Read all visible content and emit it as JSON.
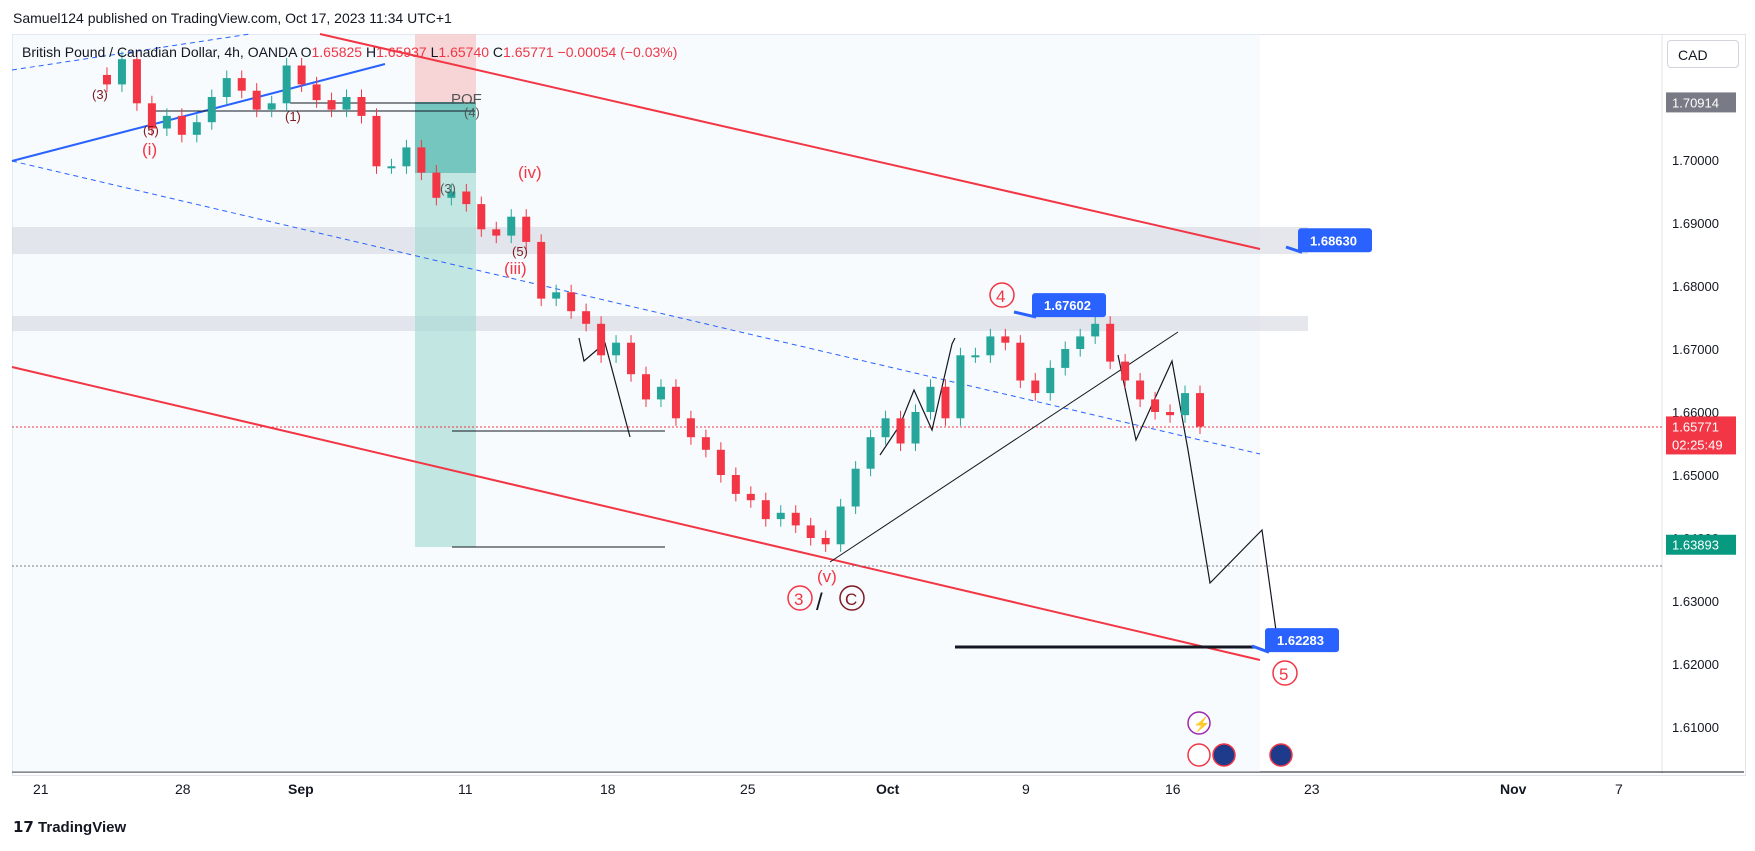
{
  "header": {
    "published_line": "Samuel124 published on TradingView.com, Oct 17, 2023 11:34 UTC+1"
  },
  "legend": {
    "symbol": "British Pound / Canadian Dollar, 4h, OANDA",
    "o_label": "O",
    "o_value": "1.65825",
    "h_label": "H",
    "h_value": "1.65937",
    "l_label": "L",
    "l_value": "1.65740",
    "c_label": "C",
    "c_value": "1.65771",
    "change": "−0.00054 (−0.03%)"
  },
  "currency": "CAD",
  "footer": {
    "brand": "TradingView"
  },
  "colors": {
    "up": "#26a69a",
    "down": "#f23645",
    "channel": "#f23645",
    "trend_blue": "#2962ff",
    "label_blue": "#2962ff"
  },
  "chart_data": {
    "type": "candlestick",
    "y_range": [
      1.6,
      1.7155
    ],
    "y_ticks": [
      "1.70000",
      "1.69000",
      "1.68000",
      "1.67000",
      "1.66000",
      "1.65000",
      "1.64000",
      "1.63000",
      "1.62000",
      "1.61000"
    ],
    "x_ticks": [
      "21",
      "28",
      "Sep",
      "11",
      "18",
      "25",
      "Oct",
      "9",
      "16",
      "23",
      "Nov",
      "7"
    ],
    "price_tags": [
      {
        "label": "1.70914",
        "value": 1.70914,
        "kind": "gray"
      },
      {
        "label": "1.65771",
        "value": 1.65771,
        "kind": "current",
        "sub": "02:25:49"
      },
      {
        "label": "1.63893",
        "value": 1.63893,
        "kind": "green"
      }
    ],
    "callouts": [
      {
        "label": "1.68630",
        "value": 1.6863
      },
      {
        "label": "1.67602",
        "value": 1.67602
      },
      {
        "label": "1.62283",
        "value": 1.62283
      }
    ],
    "wave_labels": [
      "(3)",
      "(5)",
      "(i)",
      "(1)",
      "POF",
      "(4)",
      "(3)",
      "(iv)",
      "(5)",
      "(iii)",
      "4",
      "(v)",
      "3",
      "/",
      "C",
      "5"
    ],
    "candles_close_path": [
      1.7135,
      1.712,
      1.716,
      1.709,
      1.705,
      1.707,
      1.704,
      1.706,
      1.71,
      1.713,
      1.711,
      1.708,
      1.709,
      1.715,
      1.712,
      1.7095,
      1.708,
      1.71,
      1.707,
      1.699,
      1.699,
      1.702,
      1.698,
      1.694,
      1.695,
      1.693,
      1.689,
      1.688,
      1.691,
      1.687,
      1.678,
      1.679,
      1.676,
      1.674,
      1.669,
      1.671,
      1.666,
      1.662,
      1.664,
      1.659,
      1.656,
      1.654,
      1.65,
      1.647,
      1.646,
      1.643,
      1.644,
      1.642,
      1.64,
      1.639,
      1.645,
      1.651,
      1.656,
      1.659,
      1.655,
      1.66,
      1.664,
      1.659,
      1.669,
      1.669,
      1.672,
      1.671,
      1.665,
      1.663,
      1.667,
      1.67,
      1.672,
      1.674,
      1.668,
      1.665,
      1.662,
      1.66,
      1.6595,
      1.663,
      1.6577
    ]
  }
}
